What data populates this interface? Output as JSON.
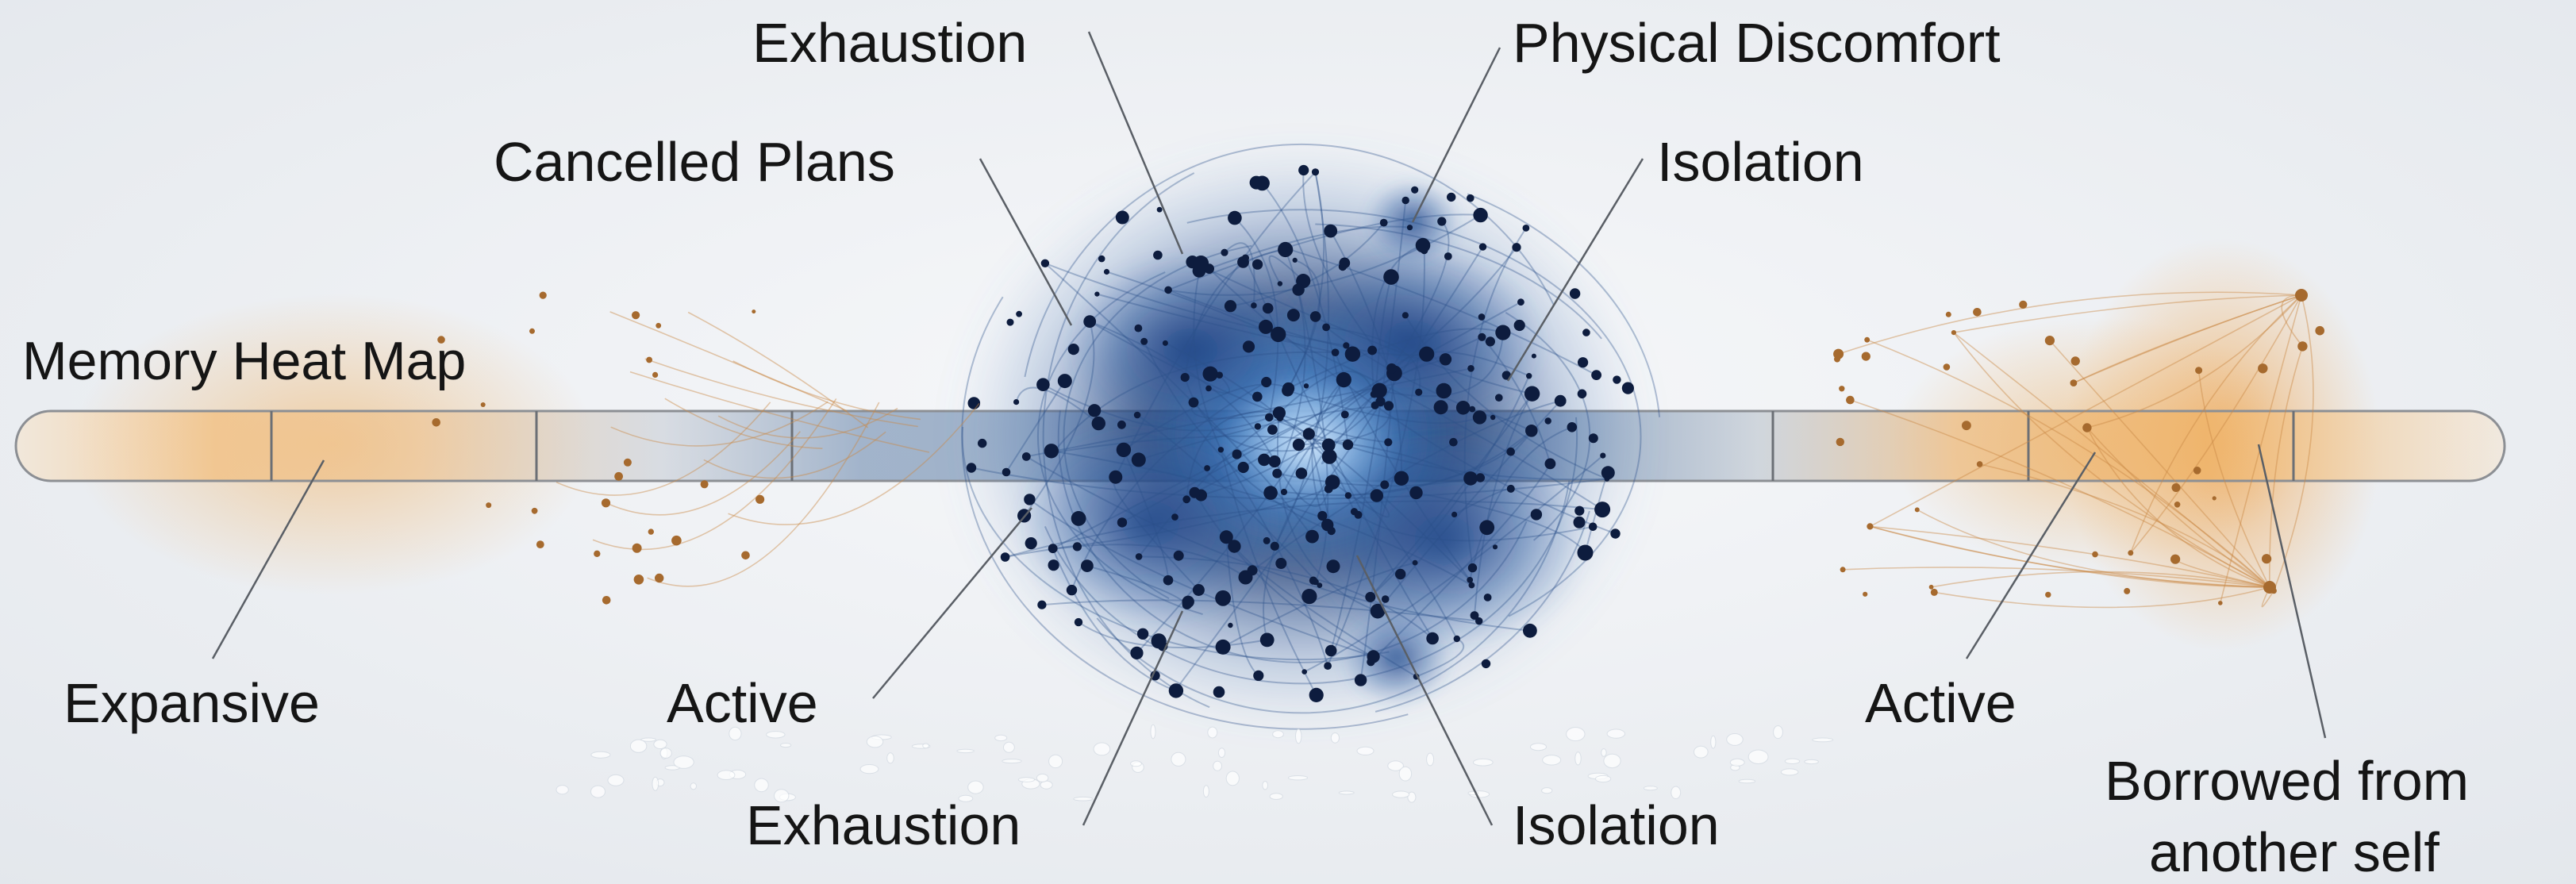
{
  "title": "Memory Heat Map",
  "colors": {
    "warm": "#e8a24c",
    "cool": "#1e3c78",
    "dark_node": "#0d1c3e",
    "warm_node": "#a66a2e",
    "line": "#5a5f66",
    "bar_outline": "#8c8f94"
  },
  "labels": {
    "exhaustion_top": "Exhaustion",
    "physical_discomfort": "Physical Discomfort",
    "cancelled_plans": "Cancelled Plans",
    "isolation_top": "Isolation",
    "expansive": "Expansive",
    "active_center": "Active",
    "active_right": "Active",
    "exhaustion_bottom": "Exhaustion",
    "isolation_bottom": "Isolation",
    "borrowed_line1": "Borrowed from",
    "borrowed_line2": "another self"
  }
}
